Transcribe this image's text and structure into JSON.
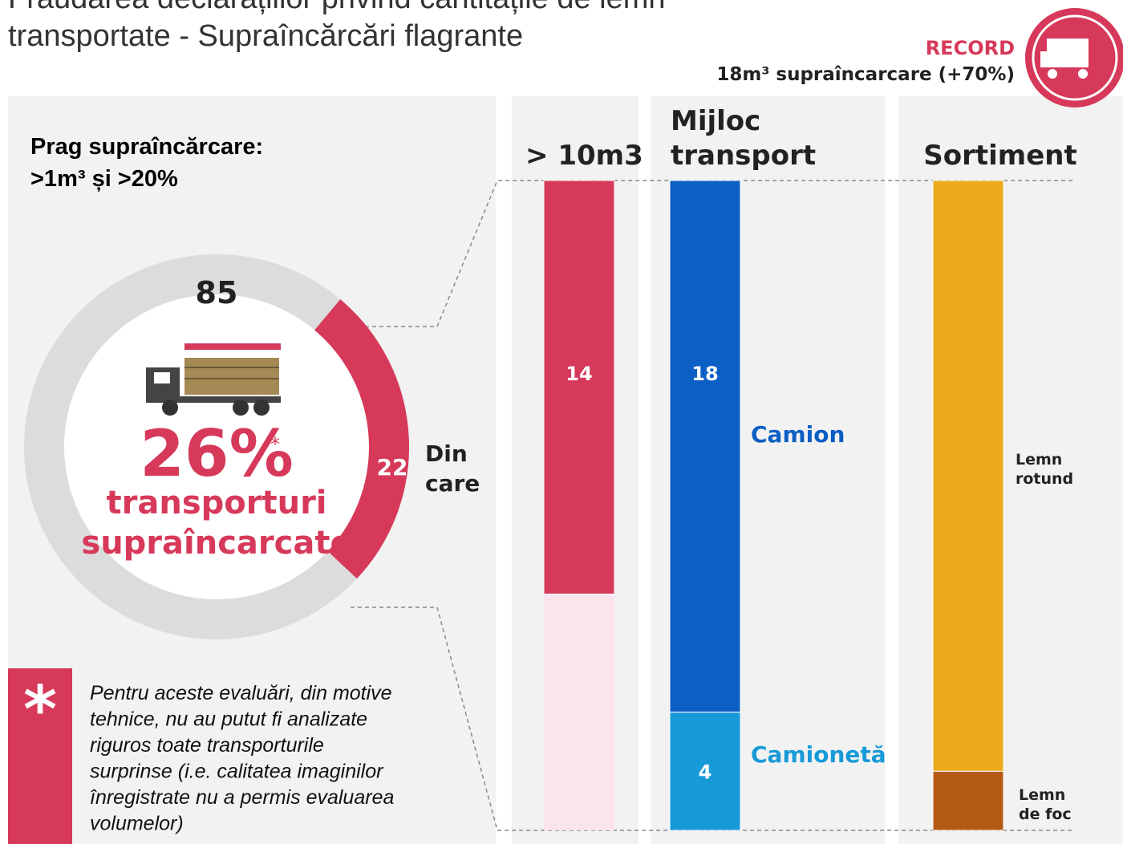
{
  "title": [
    "Fraudarea declarațiilor privind cantitățile de lemn",
    "transportate - Supraîncărcări flagrante"
  ],
  "record": {
    "label": "RECORD",
    "text": "18m³ supraîncarcare (+70%)"
  },
  "threshold": [
    "Prag supraîncărcare:",
    ">1m³ și >20%"
  ],
  "donut": {
    "total": 85,
    "part": 22,
    "percent_label": "26%",
    "asterisk": "*",
    "caption": [
      "transporturi",
      "supraîncarcate"
    ],
    "note": [
      "Din",
      "care"
    ],
    "ring_color": "#dcdcdc",
    "part_color": "#d6395a"
  },
  "columns": [
    {
      "title": [
        "> 10m3"
      ],
      "rest_color": "#fce4ef",
      "segments": [
        {
          "value": 14,
          "color": "#d6395a"
        }
      ]
    },
    {
      "title": [
        "Mijloc",
        "transport"
      ],
      "segments": [
        {
          "name": [
            "Camion"
          ],
          "value": 18,
          "color": "#0c5fc4"
        },
        {
          "name": [
            "Camionetă"
          ],
          "value": 4,
          "color": "#179ad8"
        }
      ]
    },
    {
      "title": [
        "Sortiment"
      ],
      "segments": [
        {
          "name": [
            "Lemn",
            "rotund"
          ],
          "value": 20,
          "color": "#ebab1c"
        },
        {
          "name": [
            "Lemn",
            "de foc"
          ],
          "value": 2,
          "color": "#b55a16"
        }
      ]
    }
  ],
  "footnote": {
    "symbol": "*",
    "lines": [
      "Pentru aceste evaluări, din motive",
      "tehnice, nu au putut fi analizate",
      "riguros toate transporturile",
      "surprinse (i.e. calitatea imaginilor",
      "înregistrate nu a permis evaluarea",
      "volumelor)"
    ]
  }
}
